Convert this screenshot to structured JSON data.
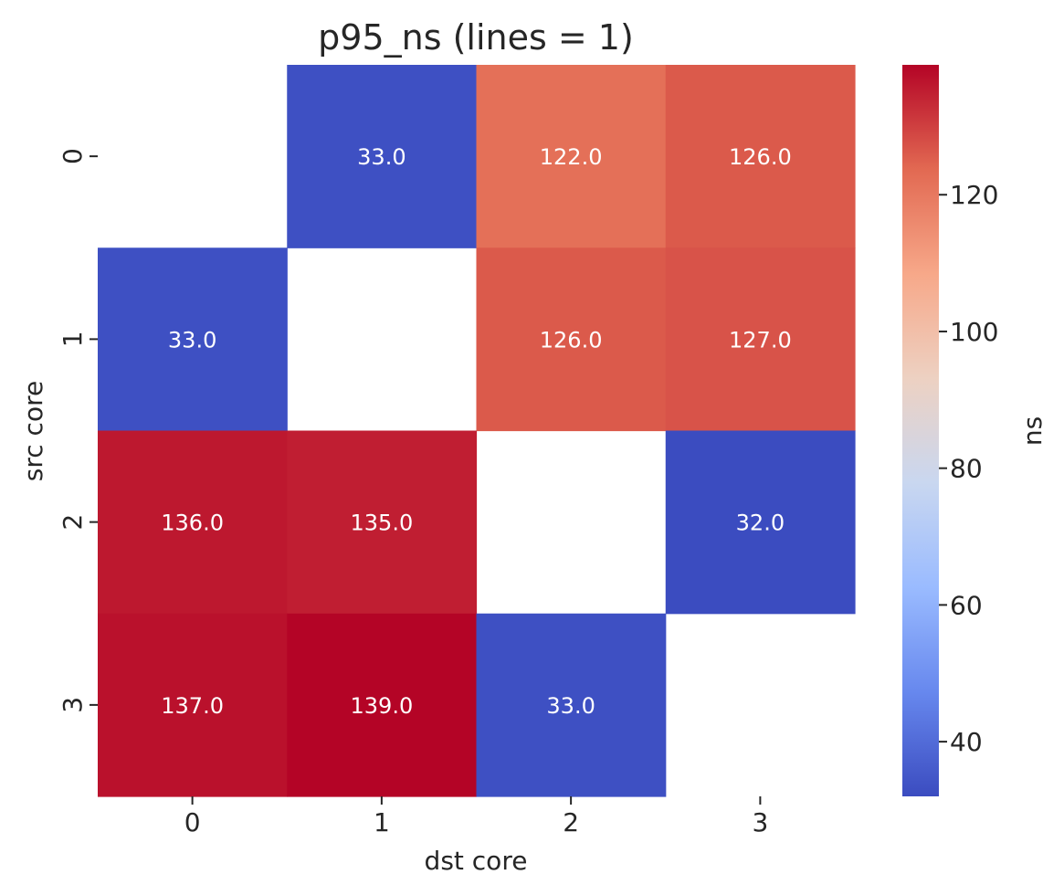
{
  "chart_data": {
    "type": "heatmap",
    "title": "p95_ns (lines = 1)",
    "xlabel": "dst core",
    "ylabel": "src core",
    "x_categories": [
      "0",
      "1",
      "2",
      "3"
    ],
    "y_categories": [
      "0",
      "1",
      "2",
      "3"
    ],
    "values": [
      [
        null,
        33.0,
        122.0,
        126.0
      ],
      [
        33.0,
        null,
        126.0,
        127.0
      ],
      [
        136.0,
        135.0,
        null,
        32.0
      ],
      [
        137.0,
        139.0,
        33.0,
        null
      ]
    ],
    "value_labels": [
      [
        "",
        "33.0",
        "122.0",
        "126.0"
      ],
      [
        "33.0",
        "",
        "126.0",
        "127.0"
      ],
      [
        "136.0",
        "135.0",
        "",
        "32.0"
      ],
      [
        "137.0",
        "139.0",
        "33.0",
        ""
      ]
    ],
    "colormap": "coolwarm",
    "colormap_stops": [
      "#3b4cc0",
      "#6788ee",
      "#9abbff",
      "#c9d7f0",
      "#edd1c2",
      "#f7a889",
      "#e26952",
      "#b40426"
    ],
    "colorbar": {
      "label": "ns",
      "range": [
        32.0,
        139.0
      ],
      "ticks": [
        40,
        60,
        80,
        100,
        120
      ],
      "tick_labels": [
        "40",
        "60",
        "80",
        "100",
        "120"
      ]
    },
    "grid": false,
    "legend": "none"
  }
}
